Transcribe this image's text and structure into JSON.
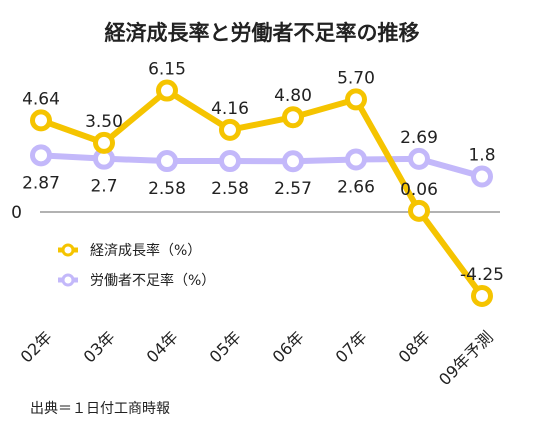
{
  "chart_data": {
    "type": "line",
    "title": "経済成長率と労働者不足率の推移",
    "categories": [
      "02年",
      "03年",
      "04年",
      "05年",
      "06年",
      "07年",
      "08年",
      "09年予測"
    ],
    "series": [
      {
        "name": "経済成長率（%）",
        "values": [
          4.64,
          3.5,
          6.15,
          4.16,
          4.8,
          5.7,
          0.06,
          -4.25
        ],
        "labels": [
          "4.64",
          "3.50",
          "6.15",
          "4.16",
          "4.80",
          "5.70",
          "0.06",
          "-4.25"
        ],
        "color": "#F5C400"
      },
      {
        "name": "労働者不足率（%）",
        "values": [
          2.87,
          2.7,
          2.58,
          2.58,
          2.57,
          2.66,
          2.69,
          1.8
        ],
        "labels": [
          "2.87",
          "2.7",
          "2.58",
          "2.58",
          "2.57",
          "2.66",
          "2.69",
          "1.8"
        ],
        "color": "#C3B8FA"
      }
    ],
    "zero_label": "0",
    "source": "出典＝１日付工商時報",
    "legend": "center-left",
    "grid": false
  }
}
